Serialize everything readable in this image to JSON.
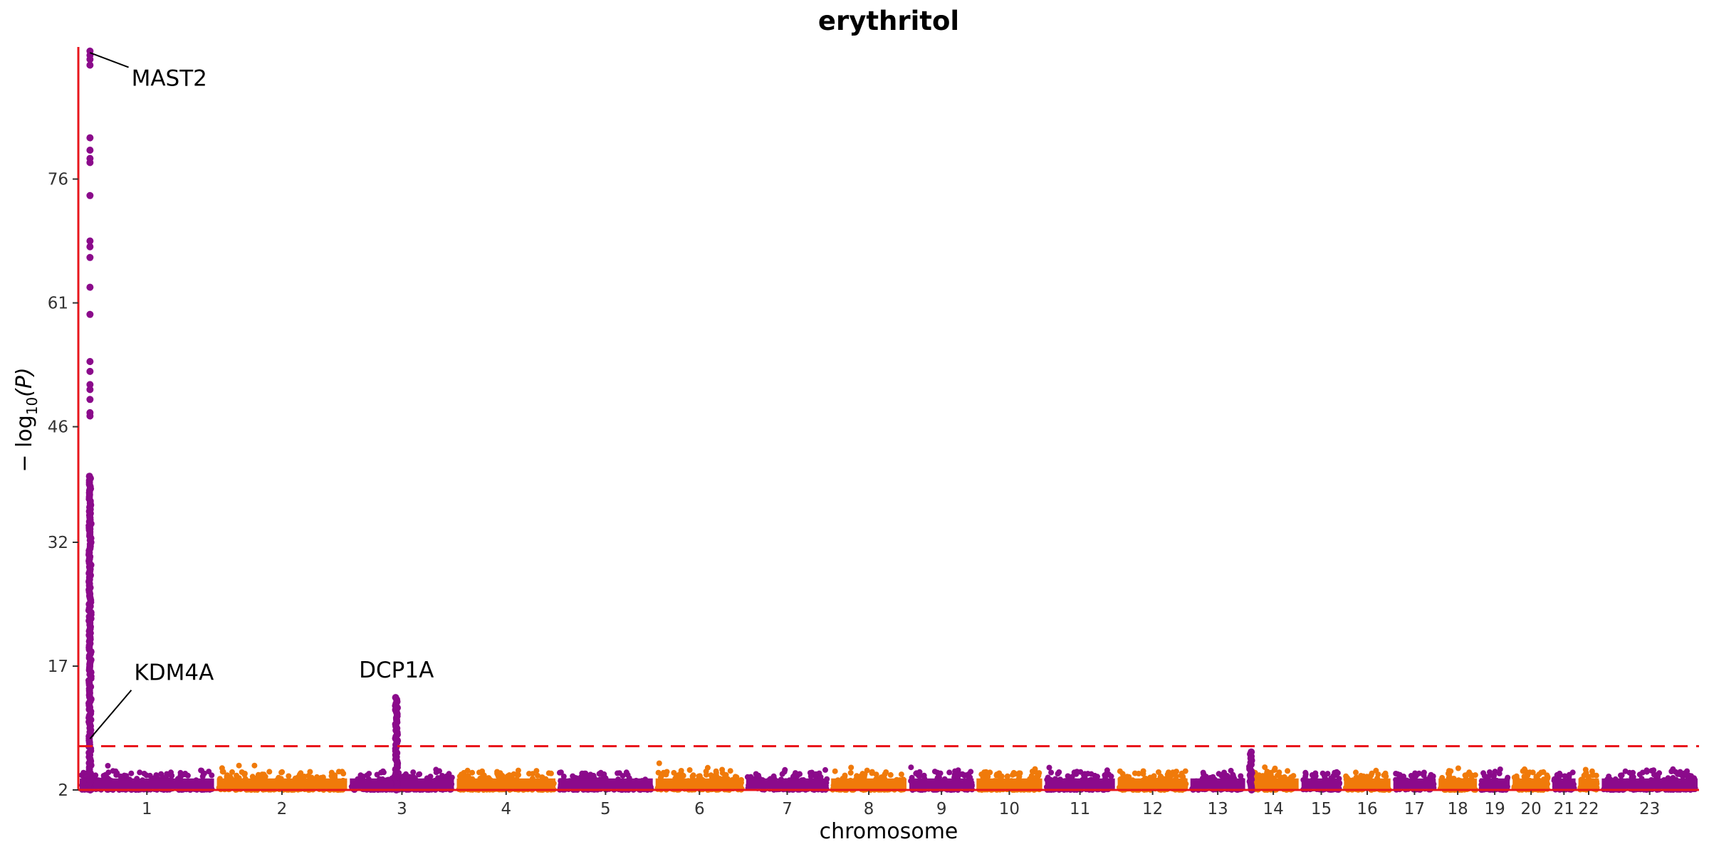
{
  "chart_data": {
    "type": "scatter",
    "title": "erythritol",
    "xlabel": "chromosome",
    "ylabel_prefix": "− log",
    "ylabel_sub": "10",
    "ylabel_suffix": "(P)",
    "ylim": [
      2,
      92
    ],
    "yticks": [
      2,
      17,
      32,
      46,
      61,
      76
    ],
    "significance_threshold": 7.3,
    "colors": {
      "odd": "#8b0a8b",
      "even": "#f07a0a",
      "axis": "#e8161c",
      "threshold": "#e8161c"
    },
    "chromosomes": [
      {
        "label": "1",
        "start": 0,
        "end": 1.0
      },
      {
        "label": "2",
        "start": 1.0,
        "end": 1.97
      },
      {
        "label": "3",
        "start": 1.97,
        "end": 2.75
      },
      {
        "label": "4",
        "start": 2.75,
        "end": 3.49
      },
      {
        "label": "5",
        "start": 3.49,
        "end": 4.2
      },
      {
        "label": "6",
        "start": 4.2,
        "end": 4.86
      },
      {
        "label": "7",
        "start": 4.86,
        "end": 5.48
      },
      {
        "label": "8",
        "start": 5.48,
        "end": 6.05
      },
      {
        "label": "9",
        "start": 6.05,
        "end": 6.54
      },
      {
        "label": "10",
        "start": 6.54,
        "end": 7.04
      },
      {
        "label": "11",
        "start": 7.04,
        "end": 7.57
      },
      {
        "label": "12",
        "start": 7.57,
        "end": 8.1
      },
      {
        "label": "13",
        "start": 8.1,
        "end": 8.52
      },
      {
        "label": "14",
        "start": 8.52,
        "end": 8.91
      },
      {
        "label": "15",
        "start": 8.91,
        "end": 9.22
      },
      {
        "label": "16",
        "start": 9.22,
        "end": 9.58
      },
      {
        "label": "17",
        "start": 9.58,
        "end": 9.91
      },
      {
        "label": "18",
        "start": 9.91,
        "end": 10.21
      },
      {
        "label": "19",
        "start": 10.21,
        "end": 10.45
      },
      {
        "label": "20",
        "start": 10.45,
        "end": 10.74
      },
      {
        "label": "21",
        "start": 10.74,
        "end": 10.93
      },
      {
        "label": "22",
        "start": 10.93,
        "end": 11.1
      },
      {
        "label": "23",
        "start": 11.1,
        "end": 11.82
      }
    ],
    "peaks": [
      {
        "chrom": "1",
        "pos": 0.085,
        "top": 91.5
      },
      {
        "chrom": "3",
        "pos": 0.35,
        "top": 13.2
      },
      {
        "chrom": "13",
        "pos": 0.45,
        "top": 6.6
      }
    ],
    "strong_hits": [
      {
        "chrom": "1",
        "pos": 0.085,
        "values": [
          91.5,
          91.0,
          90.5,
          89.8,
          81.0,
          79.5,
          78.5,
          78.0,
          74.0,
          68.5,
          67.8,
          66.5,
          62.9,
          59.6,
          53.9,
          52.7,
          51.1,
          50.5,
          49.3,
          47.7,
          47.3,
          38.4,
          36.3,
          35.9,
          35.5,
          35.0,
          34.6,
          34.0,
          33.6
        ]
      }
    ],
    "annotations": [
      {
        "gene": "MAST2",
        "chrom": "1",
        "pos": 0.085,
        "y": 91.3,
        "label_y": 87.3,
        "label_dx": 0.24
      },
      {
        "gene": "KDM4A",
        "chrom": "1",
        "pos": 0.085,
        "y": 8.2,
        "label_y": 15.3,
        "label_dx": 0.26
      },
      {
        "gene": "DCP1A",
        "chrom": "3",
        "pos": 0.35,
        "y": 13.2,
        "label_y": 15.6,
        "label_dx": 0.0
      }
    ]
  }
}
